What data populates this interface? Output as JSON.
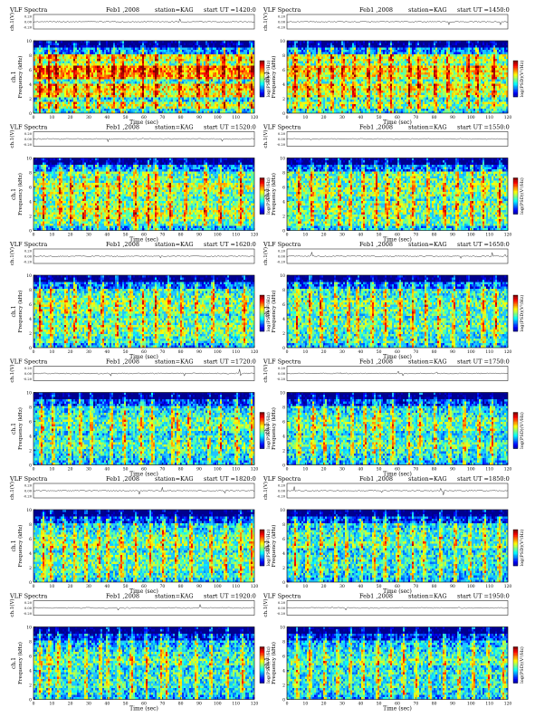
{
  "header": {
    "product": "VLF Spectra",
    "date": "Feb1 ,2008",
    "station": "station=KAG",
    "start_prefix": "start  UT  ="
  },
  "axis_labels": {
    "wave_ylabel": "ch.1(V)",
    "spec_ylabel_top": "ch.1",
    "spec_ylabel": "Frequency  (kHz)",
    "xlabel": "Time  (sec)",
    "colorbar_label": "log(PSD)(V²/Hz)"
  },
  "colors": {
    "colormap": [
      "#00008f",
      "#0000ff",
      "#0080ff",
      "#00ffff",
      "#80ff80",
      "#ffff00",
      "#ff8000",
      "#ff0000",
      "#800000"
    ],
    "background_level": "#22c4ff",
    "trace": "#000000"
  },
  "chart_data": [
    {
      "type": "heatmap",
      "panel": "1420",
      "start_ut": "1420:0",
      "xlabel": "Time  (sec)",
      "ylabel": "Frequency  (kHz)",
      "xlim": [
        0,
        120
      ],
      "ylim": [
        0,
        10
      ],
      "x_ticks": [
        "0",
        "10",
        "20",
        "30",
        "40",
        "50",
        "60",
        "70",
        "80",
        "90",
        "100",
        "110",
        "120"
      ],
      "y_ticks": [
        "0",
        "2",
        "4",
        "6",
        "8",
        "10"
      ],
      "wave_ylim": [
        -0.2,
        0.2
      ],
      "wave_ticks": [
        "0.20",
        "0.00",
        "-0.20"
      ],
      "band_levels": [
        0.35,
        0.55,
        0.35,
        0.6,
        0.65,
        0.4,
        0.7,
        0.75,
        0.5,
        0.6,
        0.25,
        0.1
      ],
      "bursts": [
        3,
        8,
        12,
        22,
        29,
        35,
        43,
        48,
        59,
        66,
        79,
        89,
        94,
        103,
        111,
        118
      ]
    },
    {
      "type": "heatmap",
      "panel": "1450",
      "start_ut": "1450:0",
      "xlabel": "Time  (sec)",
      "ylabel": "Frequency  (kHz)",
      "xlim": [
        0,
        120
      ],
      "ylim": [
        0,
        10
      ],
      "x_ticks": [
        "0",
        "10",
        "20",
        "30",
        "40",
        "50",
        "60",
        "70",
        "80",
        "90",
        "100",
        "110",
        "120"
      ],
      "y_ticks": [
        "0",
        "2",
        "4",
        "6",
        "8",
        "10"
      ],
      "wave_ylim": [
        -0.2,
        0.2
      ],
      "wave_ticks": [
        "0.20",
        "0.00",
        "-0.20"
      ],
      "band_levels": [
        0.35,
        0.5,
        0.4,
        0.55,
        0.6,
        0.45,
        0.6,
        0.65,
        0.5,
        0.55,
        0.25,
        0.1
      ],
      "bursts": [
        4,
        11,
        17,
        24,
        30,
        36,
        44,
        50,
        56,
        66,
        71,
        80,
        87,
        98,
        103,
        112
      ]
    },
    {
      "type": "heatmap",
      "panel": "1520",
      "start_ut": "1520:0",
      "xlabel": "Time  (sec)",
      "ylabel": "Frequency  (kHz)",
      "xlim": [
        0,
        120
      ],
      "ylim": [
        0,
        10
      ],
      "x_ticks": [
        "0",
        "10",
        "20",
        "30",
        "40",
        "50",
        "60",
        "70",
        "80",
        "90",
        "100",
        "110",
        "120"
      ],
      "y_ticks": [
        "0",
        "2",
        "4",
        "6",
        "8",
        "10"
      ],
      "wave_ylim": [
        -0.2,
        0.2
      ],
      "wave_ticks": [
        "0.20",
        "0.00",
        "-0.20"
      ],
      "band_levels": [
        0.3,
        0.45,
        0.55,
        0.55,
        0.5,
        0.45,
        0.5,
        0.55,
        0.45,
        0.45,
        0.25,
        0.1
      ],
      "bursts": [
        5,
        14,
        20,
        27,
        34,
        40,
        46,
        55,
        62,
        66,
        74,
        82,
        93,
        101,
        112
      ]
    },
    {
      "type": "heatmap",
      "panel": "1550",
      "start_ut": "1550:0",
      "xlabel": "Time  (sec)",
      "ylabel": "Frequency  (kHz)",
      "xlim": [
        0,
        120
      ],
      "ylim": [
        0,
        10
      ],
      "x_ticks": [
        "0",
        "10",
        "20",
        "30",
        "40",
        "50",
        "60",
        "70",
        "80",
        "90",
        "100",
        "110",
        "120"
      ],
      "y_ticks": [
        "0",
        "2",
        "4",
        "6",
        "8",
        "10"
      ],
      "wave_ylim": [
        -0.2,
        0.2
      ],
      "wave_ticks": [
        "0.20",
        "0.00",
        "-0.20"
      ],
      "band_levels": [
        0.3,
        0.45,
        0.45,
        0.5,
        0.5,
        0.4,
        0.5,
        0.5,
        0.45,
        0.45,
        0.2,
        0.08
      ],
      "bursts": [
        6,
        13,
        21,
        28,
        34,
        41,
        48,
        54,
        60,
        68,
        76,
        85,
        92,
        100,
        106,
        115
      ]
    },
    {
      "type": "heatmap",
      "panel": "1620",
      "start_ut": "1620:0",
      "xlabel": "Time  (sec)",
      "ylabel": "Frequency  (kHz)",
      "xlim": [
        0,
        120
      ],
      "ylim": [
        0,
        10
      ],
      "x_ticks": [
        "0",
        "10",
        "20",
        "30",
        "40",
        "50",
        "60",
        "70",
        "80",
        "90",
        "100",
        "110",
        "120"
      ],
      "y_ticks": [
        "0",
        "2",
        "4",
        "6",
        "8",
        "10"
      ],
      "wave_ylim": [
        -0.2,
        0.2
      ],
      "wave_ticks": [
        "0.20",
        "0.00",
        "-0.20"
      ],
      "band_levels": [
        0.3,
        0.4,
        0.45,
        0.5,
        0.45,
        0.4,
        0.5,
        0.5,
        0.45,
        0.4,
        0.2,
        0.08
      ],
      "bursts": [
        3,
        9,
        17,
        22,
        30,
        37,
        45,
        52,
        59,
        66,
        73,
        80,
        88,
        97,
        105,
        114
      ]
    },
    {
      "type": "heatmap",
      "panel": "1650",
      "start_ut": "1650:0",
      "xlabel": "Time  (sec)",
      "ylabel": "Frequency  (kHz)",
      "xlim": [
        0,
        120
      ],
      "ylim": [
        0,
        10
      ],
      "x_ticks": [
        "0",
        "10",
        "20",
        "30",
        "40",
        "50",
        "60",
        "70",
        "80",
        "90",
        "100",
        "110",
        "120"
      ],
      "y_ticks": [
        "0",
        "2",
        "4",
        "6",
        "8",
        "10"
      ],
      "wave_ylim": [
        -0.2,
        0.2
      ],
      "wave_ticks": [
        "0.20",
        "0.00",
        "-0.20"
      ],
      "band_levels": [
        0.3,
        0.4,
        0.4,
        0.45,
        0.45,
        0.4,
        0.45,
        0.5,
        0.4,
        0.4,
        0.2,
        0.08
      ],
      "bursts": [
        5,
        12,
        18,
        26,
        33,
        38,
        46,
        53,
        61,
        68,
        75,
        82,
        90,
        98,
        106,
        113
      ]
    },
    {
      "type": "heatmap",
      "panel": "1720",
      "start_ut": "1720:0",
      "xlabel": "Time  (sec)",
      "ylabel": "Frequency  (kHz)",
      "xlim": [
        0,
        120
      ],
      "ylim": [
        0,
        10
      ],
      "x_ticks": [
        "0",
        "10",
        "20",
        "30",
        "40",
        "50",
        "60",
        "70",
        "80",
        "90",
        "100",
        "110",
        "120"
      ],
      "y_ticks": [
        "0",
        "2",
        "4",
        "6",
        "8",
        "10"
      ],
      "wave_ylim": [
        -0.2,
        0.2
      ],
      "wave_ticks": [
        "0.20",
        "0.00",
        "-0.20"
      ],
      "band_levels": [
        0.3,
        0.35,
        0.4,
        0.45,
        0.4,
        0.35,
        0.45,
        0.45,
        0.4,
        0.35,
        0.15,
        0.05
      ],
      "bursts": [
        4,
        10,
        19,
        25,
        31,
        42,
        49,
        58,
        64,
        75,
        78,
        84,
        95,
        101,
        110,
        118
      ]
    },
    {
      "type": "heatmap",
      "panel": "1750",
      "start_ut": "1750:0",
      "xlabel": "Time  (sec)",
      "ylabel": "Frequency  (kHz)",
      "xlim": [
        0,
        120
      ],
      "ylim": [
        0,
        10
      ],
      "x_ticks": [
        "0",
        "10",
        "20",
        "30",
        "40",
        "50",
        "60",
        "70",
        "80",
        "90",
        "100",
        "110",
        "120"
      ],
      "y_ticks": [
        "0",
        "2",
        "4",
        "6",
        "8",
        "10"
      ],
      "wave_ylim": [
        -0.2,
        0.2
      ],
      "wave_ticks": [
        "0.20",
        "0.00",
        "-0.20"
      ],
      "band_levels": [
        0.3,
        0.35,
        0.4,
        0.45,
        0.4,
        0.35,
        0.45,
        0.45,
        0.4,
        0.35,
        0.15,
        0.05
      ],
      "bursts": [
        6,
        14,
        20,
        27,
        35,
        42,
        47,
        50,
        57,
        66,
        72,
        80,
        88,
        96,
        104,
        111
      ]
    },
    {
      "type": "heatmap",
      "panel": "1820",
      "start_ut": "1820:0",
      "xlabel": "Time  (sec)",
      "ylabel": "Frequency  (kHz)",
      "xlim": [
        0,
        120
      ],
      "ylim": [
        0,
        10
      ],
      "x_ticks": [
        "0",
        "10",
        "20",
        "30",
        "40",
        "50",
        "60",
        "70",
        "80",
        "90",
        "100",
        "110",
        "120"
      ],
      "y_ticks": [
        "0",
        "2",
        "4",
        "6",
        "8",
        "10"
      ],
      "wave_ylim": [
        -0.2,
        0.2
      ],
      "wave_ticks": [
        "0.20",
        "0.00",
        "-0.20"
      ],
      "band_levels": [
        0.35,
        0.4,
        0.45,
        0.45,
        0.45,
        0.4,
        0.5,
        0.45,
        0.4,
        0.35,
        0.15,
        0.05
      ],
      "bursts": [
        5,
        9,
        16,
        22,
        28,
        35,
        40,
        47,
        55,
        63,
        70,
        77,
        85,
        96,
        104,
        112,
        118
      ]
    },
    {
      "type": "heatmap",
      "panel": "1850",
      "start_ut": "1850:0",
      "xlabel": "Time  (sec)",
      "ylabel": "Frequency  (kHz)",
      "xlim": [
        0,
        120
      ],
      "ylim": [
        0,
        10
      ],
      "x_ticks": [
        "0",
        "10",
        "20",
        "30",
        "40",
        "50",
        "60",
        "70",
        "80",
        "90",
        "100",
        "110",
        "120"
      ],
      "y_ticks": [
        "0",
        "2",
        "4",
        "6",
        "8",
        "10"
      ],
      "wave_ylim": [
        -0.2,
        0.2
      ],
      "wave_ticks": [
        "0.20",
        "0.00",
        "-0.20"
      ],
      "band_levels": [
        0.3,
        0.35,
        0.4,
        0.4,
        0.4,
        0.35,
        0.45,
        0.4,
        0.4,
        0.35,
        0.15,
        0.05
      ],
      "bursts": [
        4,
        11,
        18,
        26,
        32,
        40,
        47,
        53,
        60,
        68,
        74,
        83,
        91,
        99,
        107,
        115
      ]
    },
    {
      "type": "heatmap",
      "panel": "1920",
      "start_ut": "1920:0",
      "xlabel": "Time  (sec)",
      "ylabel": "Frequency  (kHz)",
      "xlim": [
        0,
        120
      ],
      "ylim": [
        0,
        10
      ],
      "x_ticks": [
        "0",
        "10",
        "20",
        "30",
        "40",
        "50",
        "60",
        "70",
        "80",
        "90",
        "100",
        "110",
        "120"
      ],
      "y_ticks": [
        "0",
        "2",
        "4",
        "6",
        "8",
        "10"
      ],
      "wave_ylim": [
        -0.2,
        0.2
      ],
      "wave_ticks": [
        "0.20",
        "0.00",
        "-0.20"
      ],
      "band_levels": [
        0.3,
        0.35,
        0.4,
        0.4,
        0.4,
        0.35,
        0.45,
        0.4,
        0.35,
        0.3,
        0.12,
        0.05
      ],
      "bursts": [
        3,
        8,
        13,
        19,
        28,
        36,
        40,
        46,
        53,
        61,
        69,
        72,
        79,
        88,
        96,
        105,
        113
      ]
    },
    {
      "type": "heatmap",
      "panel": "1950",
      "start_ut": "1950:0",
      "xlabel": "Time  (sec)",
      "ylabel": "Frequency  (kHz)",
      "xlim": [
        0,
        120
      ],
      "ylim": [
        0,
        10
      ],
      "x_ticks": [
        "0",
        "10",
        "20",
        "30",
        "40",
        "50",
        "60",
        "70",
        "80",
        "90",
        "100",
        "110",
        "120"
      ],
      "y_ticks": [
        "0",
        "2",
        "4",
        "6",
        "8",
        "10"
      ],
      "wave_ylim": [
        -0.2,
        0.2
      ],
      "wave_ticks": [
        "0.20",
        "0.00",
        "-0.20"
      ],
      "band_levels": [
        0.3,
        0.35,
        0.4,
        0.4,
        0.4,
        0.35,
        0.45,
        0.4,
        0.35,
        0.3,
        0.12,
        0.05
      ],
      "bursts": [
        5,
        12,
        20,
        27,
        34,
        41,
        49,
        56,
        63,
        70,
        77,
        85,
        93,
        101,
        109,
        117
      ]
    }
  ]
}
